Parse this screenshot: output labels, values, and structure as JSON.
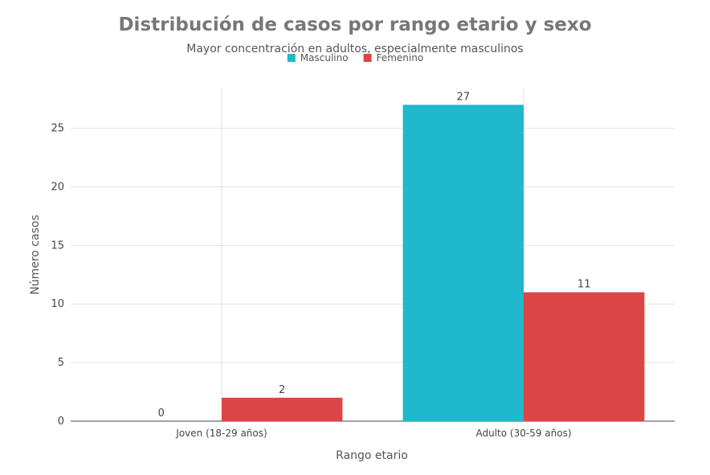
{
  "chart_data": {
    "type": "bar",
    "title": "Distribución de casos por rango etario y sexo",
    "subtitle": "Mayor concentración en adultos, especialmente masculinos",
    "xlabel": "Rango etario",
    "ylabel": "Número casos",
    "categories": [
      "Joven (18-29 años)",
      "Adulto (30-59 años)"
    ],
    "series": [
      {
        "name": "Masculino",
        "values": [
          0,
          27
        ],
        "color": "#20b8cc"
      },
      {
        "name": "Femenino",
        "values": [
          2,
          11
        ],
        "color": "#dc4545"
      }
    ],
    "ylim": [
      0,
      28.4
    ],
    "yticks": [
      0,
      5,
      10,
      15,
      20,
      25
    ],
    "grid": true,
    "legend": "top-center"
  }
}
